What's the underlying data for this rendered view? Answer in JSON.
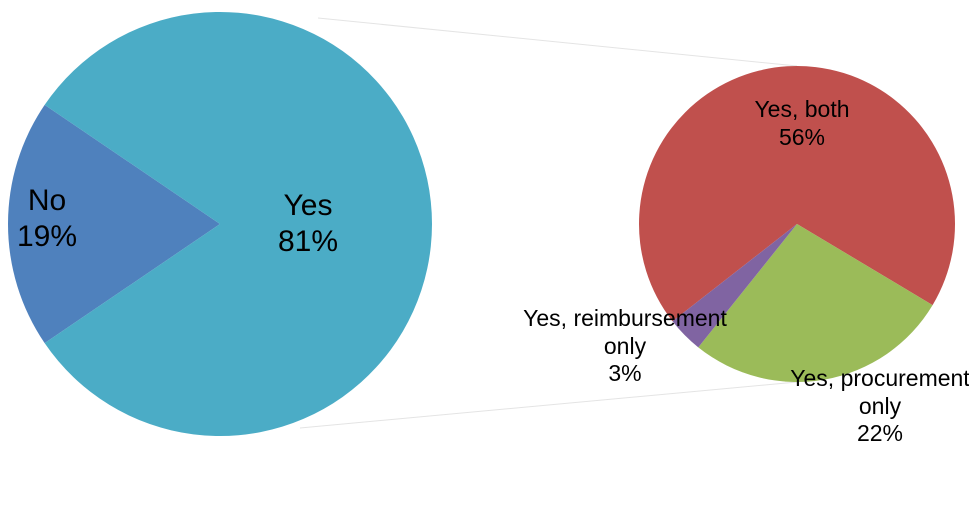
{
  "chart_data": [
    {
      "type": "pie",
      "categories": [
        "No",
        "Yes"
      ],
      "values": [
        19,
        81
      ],
      "value_labels": [
        "19%",
        "81%"
      ],
      "colors": [
        "#4f81bd",
        "#4bacc6"
      ]
    },
    {
      "type": "pie",
      "categories": [
        "Yes, both",
        "Yes, procurement only",
        "Yes, reimbursement only"
      ],
      "values": [
        56,
        22,
        3
      ],
      "value_labels": [
        "56%",
        "22%",
        "3%"
      ],
      "colors": [
        "#c0504d",
        "#9bbb59",
        "#8064a2"
      ]
    }
  ]
}
